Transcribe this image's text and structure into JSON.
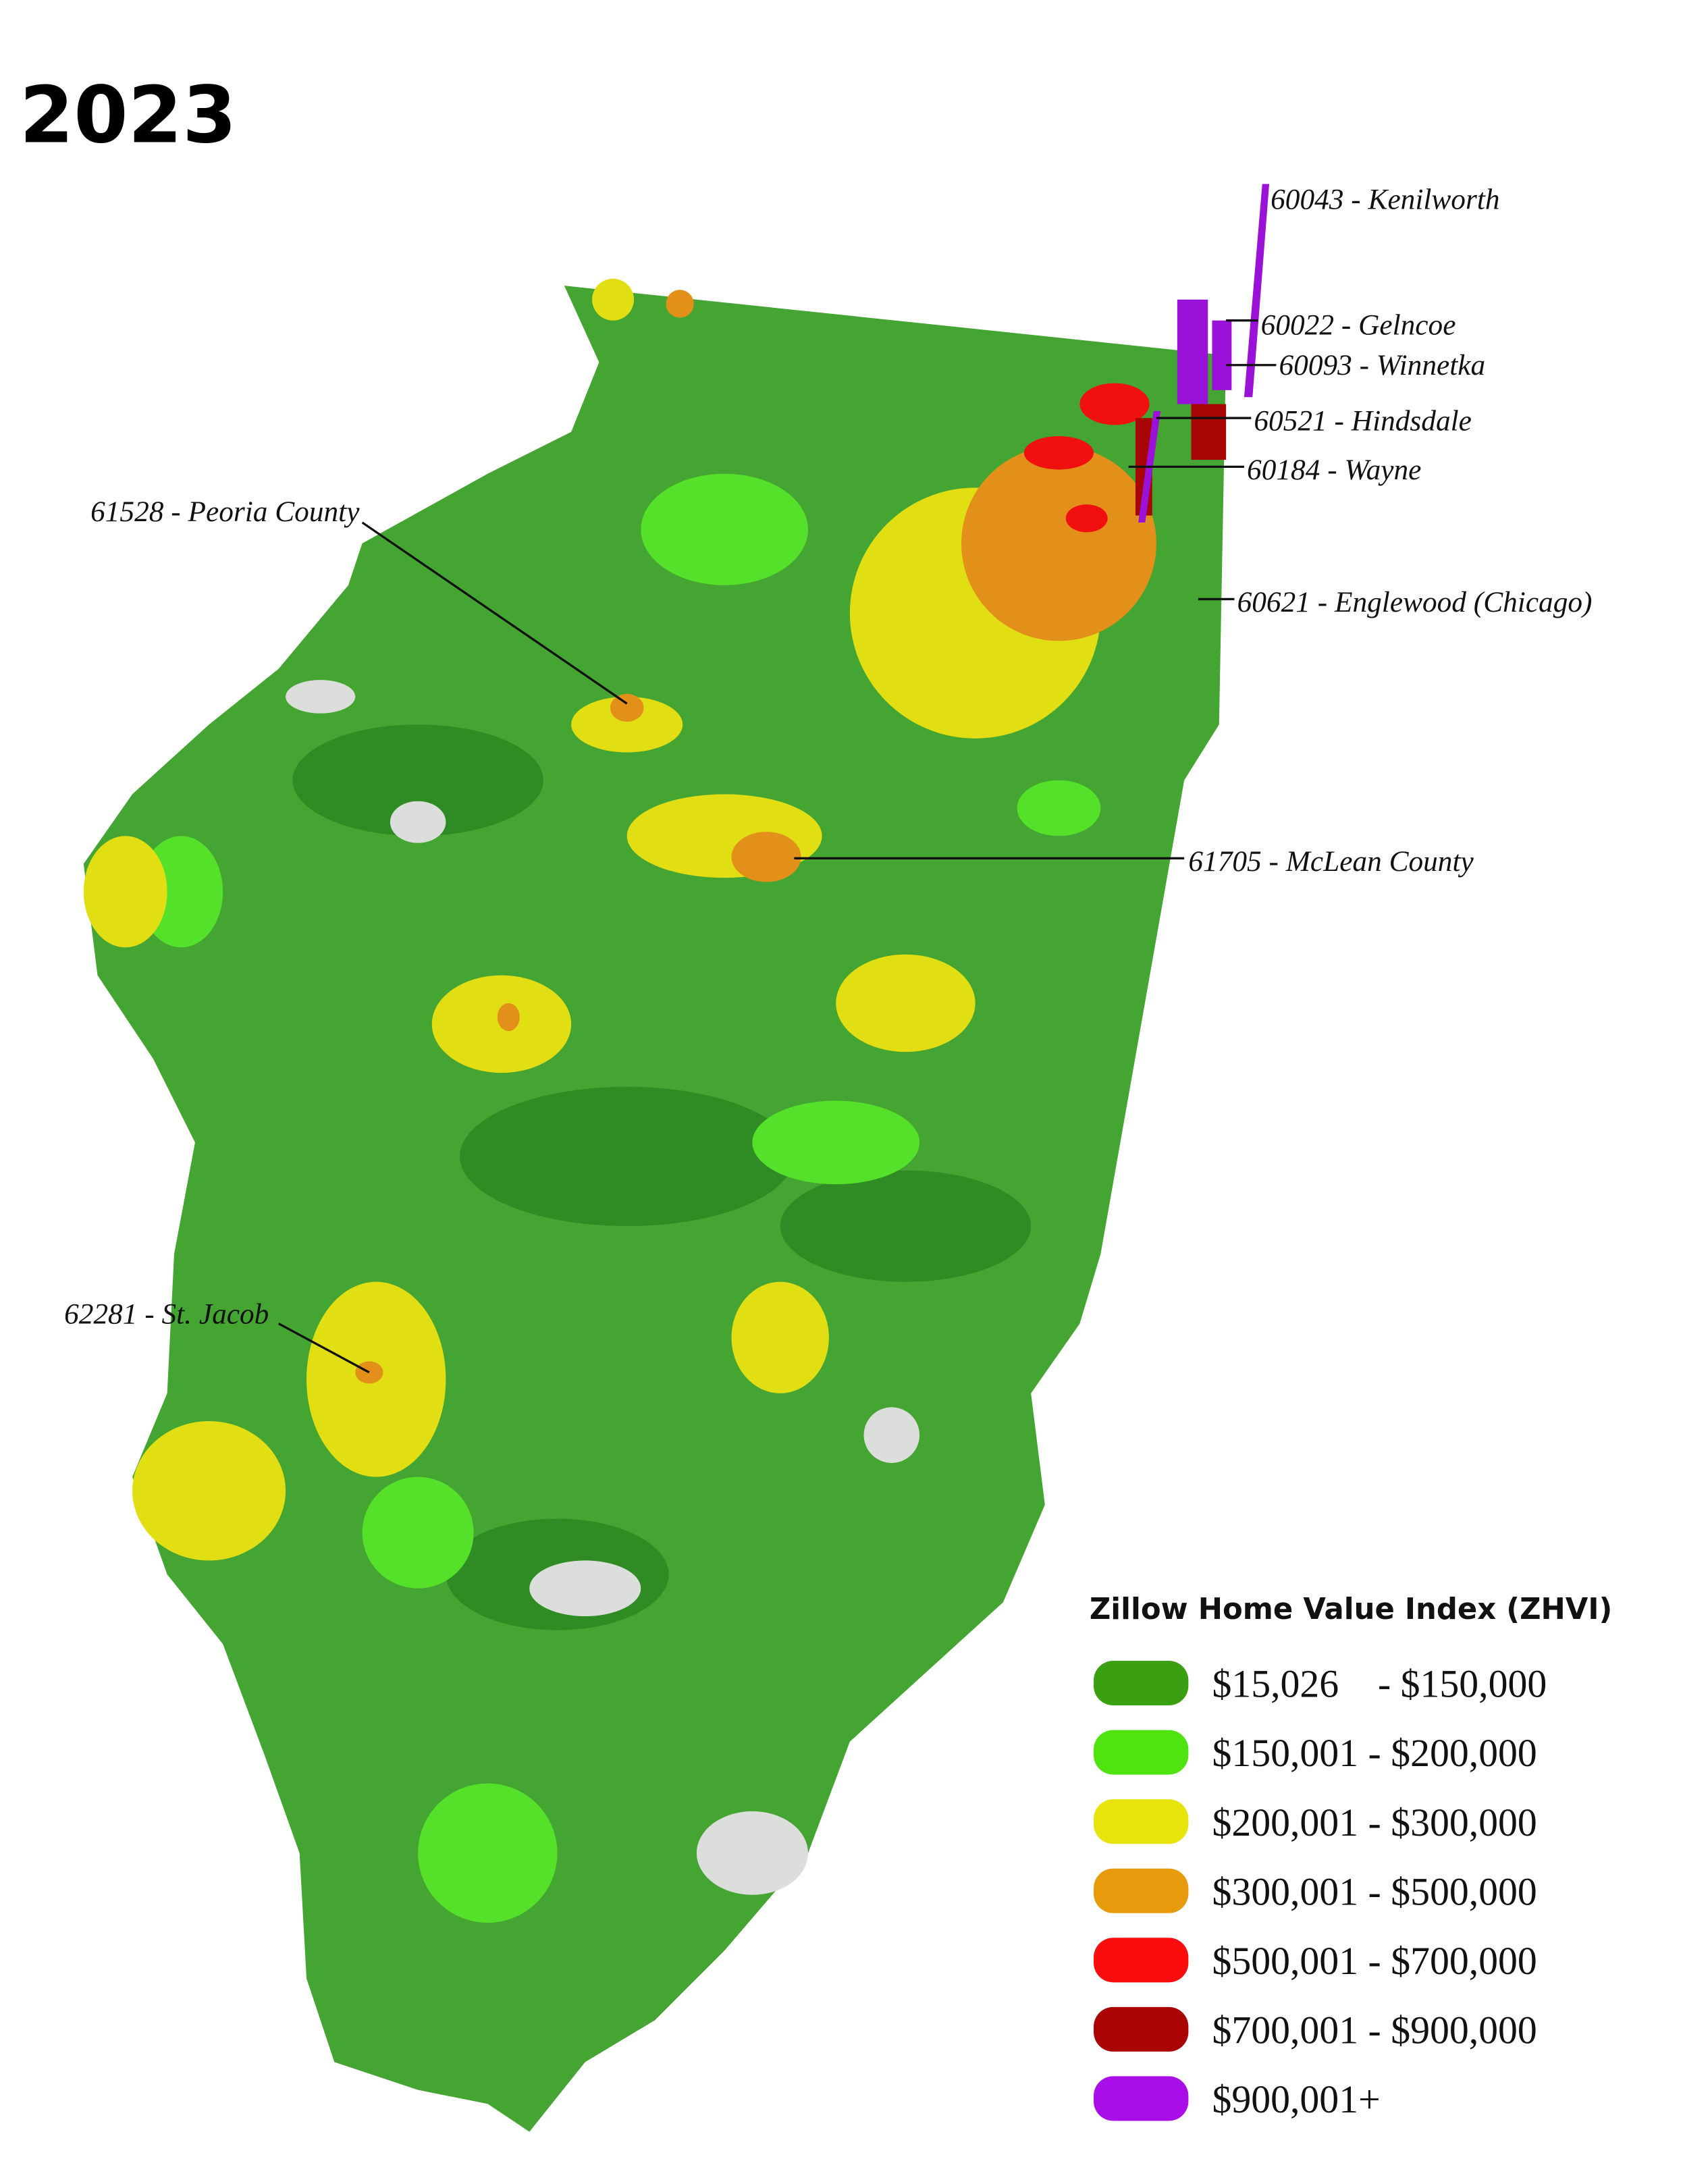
{
  "title": "2023",
  "annotations": [
    {
      "label": "60043 - Kenilworth"
    },
    {
      "label": "60022 - Gelncoe"
    },
    {
      "label": "60093 - Winnetka"
    },
    {
      "label": "60521 - Hindsdale"
    },
    {
      "label": "60184 - Wayne"
    },
    {
      "label": "60621 - Englewood (Chicago)"
    },
    {
      "label": "61528 - Peoria County"
    },
    {
      "label": "61705 - McLean County"
    },
    {
      "label": "62281 - St. Jacob"
    }
  ],
  "legend": {
    "title": "Zillow Home Value Index (ZHVI)",
    "items": [
      {
        "label": "$15,026    - $150,000",
        "color": "#3aa012"
      },
      {
        "label": "$150,001 - $200,000",
        "color": "#4fe40f"
      },
      {
        "label": "$200,001 - $300,000",
        "color": "#e6e40a"
      },
      {
        "label": "$300,001 - $500,000",
        "color": "#e69a0c"
      },
      {
        "label": "$500,001 - $700,000",
        "color": "#fb0d0d"
      },
      {
        "label": "$700,001 - $900,000",
        "color": "#aa0404"
      },
      {
        "label": "$900,001+",
        "color": "#a90ee8"
      }
    ]
  }
}
